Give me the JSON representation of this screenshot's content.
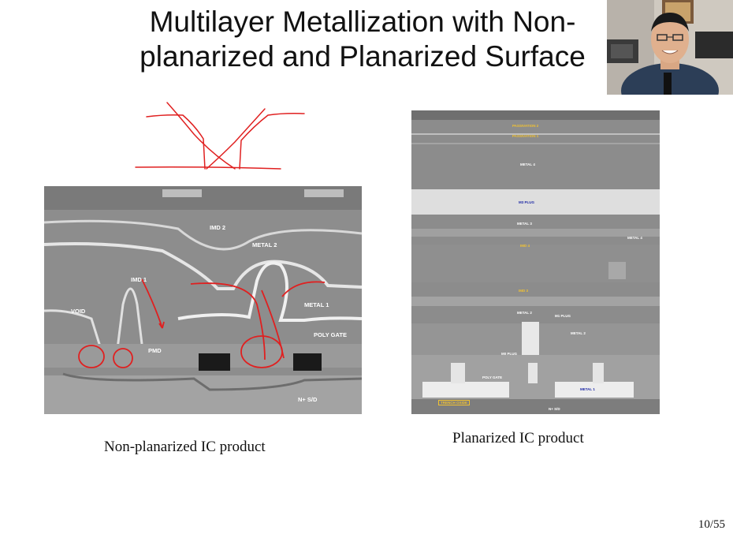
{
  "slide": {
    "title_line1": "Multilayer Metallization with Non-",
    "title_line2": "planarized and Planarized Surface",
    "page_number": "10/55"
  },
  "left_figure": {
    "caption": "Non-planarized IC product",
    "labels": {
      "imd2": "IMD 2",
      "metal2": "METAL 2",
      "imd1": "IMD 1",
      "metal1": "METAL 1",
      "void": "VOID",
      "pmd": "PMD",
      "poly_gate": "POLY GATE",
      "nsd": "N+ S/D"
    }
  },
  "right_figure": {
    "caption": "Planarized IC product",
    "labels": {
      "passivation2": "PASSIVATION 2",
      "passivation1": "PASSIVATION 1",
      "metal4_top": "METAL 4",
      "m3_plug": "M3 PLUG",
      "metal3": "METAL 3",
      "imd4": "IMD 4",
      "metal4_side": "METAL 4",
      "imd3": "IMD 3",
      "metal2": "METAL 2",
      "m1_plug": "M1 PLUG",
      "metal2b": "METAL 2",
      "m0_plug": "M0 PLUG",
      "poly_gate": "POLY GATE",
      "metal1": "METAL 1",
      "trench_oxide": "TRENCH OXIDE",
      "nsd": "N+ S/D"
    }
  },
  "colors": {
    "annotation_red": "#e02020",
    "sem_gray": "#8a8a8a",
    "label_yellow": "#f1c232",
    "label_blue": "#1f2aa6"
  }
}
